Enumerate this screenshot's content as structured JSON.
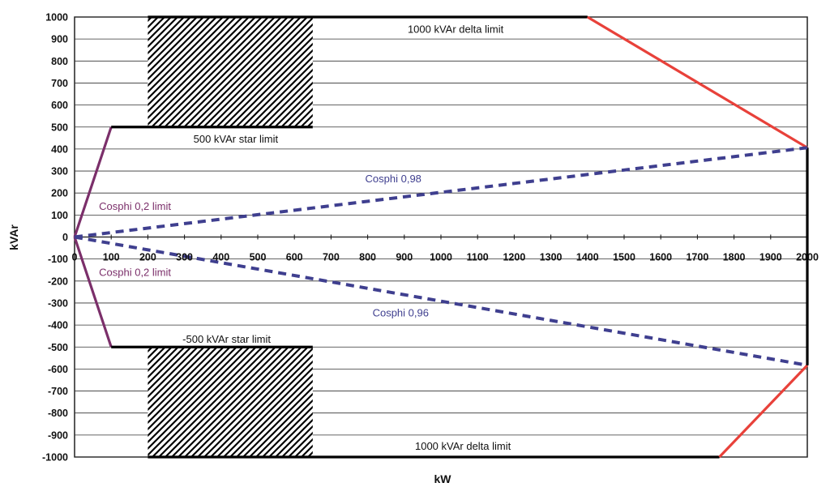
{
  "chart_data": {
    "type": "line",
    "xlabel": "kW",
    "ylabel": "kVAr",
    "xlim": [
      0,
      2000
    ],
    "ylim": [
      -1000,
      1000
    ],
    "x_ticks": [
      0,
      100,
      200,
      300,
      400,
      500,
      600,
      700,
      800,
      900,
      1000,
      1100,
      1200,
      1300,
      1400,
      1500,
      1600,
      1700,
      1800,
      1900,
      2000
    ],
    "y_ticks": [
      1000,
      900,
      800,
      700,
      600,
      500,
      400,
      300,
      200,
      100,
      0,
      -100,
      -200,
      -300,
      -400,
      -500,
      -600,
      -700,
      -800,
      -900,
      -1000
    ],
    "grid": "horizontal",
    "series": [
      {
        "id": "cosphi-02-upper",
        "color": "#7b2f6a",
        "dash": false,
        "x": [
          0,
          100
        ],
        "y": [
          0,
          500
        ]
      },
      {
        "id": "cosphi-02-lower",
        "color": "#7b2f6a",
        "dash": false,
        "x": [
          0,
          100
        ],
        "y": [
          0,
          -500
        ]
      },
      {
        "id": "star-limit-upper",
        "color": "#000000",
        "dash": false,
        "x": [
          100,
          650
        ],
        "y": [
          500,
          500
        ]
      },
      {
        "id": "star-limit-lower",
        "color": "#000000",
        "dash": false,
        "x": [
          100,
          650
        ],
        "y": [
          -500,
          -500
        ]
      },
      {
        "id": "delta-limit-upper",
        "color": "#000000",
        "dash": false,
        "x": [
          200,
          1400
        ],
        "y": [
          1000,
          1000
        ]
      },
      {
        "id": "delta-limit-lower",
        "color": "#000000",
        "dash": false,
        "x": [
          200,
          1760
        ],
        "y": [
          -1000,
          -1000
        ]
      },
      {
        "id": "red-boundary-upper",
        "color": "#e8413a",
        "dash": false,
        "x": [
          1400,
          2000
        ],
        "y": [
          1000,
          406
        ]
      },
      {
        "id": "red-boundary-lower",
        "color": "#e8413a",
        "dash": false,
        "x": [
          1760,
          2000
        ],
        "y": [
          -1000,
          -583
        ]
      },
      {
        "id": "right-boundary",
        "color": "#000000",
        "dash": false,
        "x": [
          2000,
          2000
        ],
        "y": [
          406,
          -583
        ]
      },
      {
        "id": "cosphi-098",
        "color": "#3f3f8f",
        "dash": true,
        "x": [
          0,
          2000
        ],
        "y": [
          0,
          406
        ]
      },
      {
        "id": "cosphi-096",
        "color": "#3f3f8f",
        "dash": true,
        "x": [
          0,
          2000
        ],
        "y": [
          0,
          -583
        ]
      }
    ],
    "hatched_regions": [
      {
        "x": [
          200,
          650
        ],
        "y": [
          500,
          1000
        ]
      },
      {
        "x": [
          200,
          650
        ],
        "y": [
          -1000,
          -500
        ]
      }
    ],
    "annotations": [
      {
        "text": "1000 kVAr delta limit",
        "x": 1040,
        "y": 945,
        "color": "#111111"
      },
      {
        "text": "500 kVAr star limit",
        "x": 440,
        "y": 445,
        "color": "#111111"
      },
      {
        "text": "Cosphi 0,98",
        "x": 870,
        "y": 265,
        "color": "#3f3f8f"
      },
      {
        "text": "Cosphi 0,2 limit",
        "x": 165,
        "y": 140,
        "color": "#7b2f6a"
      },
      {
        "text": "Cosphi 0,2 limit",
        "x": 165,
        "y": -160,
        "color": "#7b2f6a"
      },
      {
        "text": "Cosphi 0,96",
        "x": 890,
        "y": -345,
        "color": "#3f3f8f"
      },
      {
        "text": "-500 kVAr star limit",
        "x": 415,
        "y": -465,
        "color": "#111111"
      },
      {
        "text": "1000 kVAr delta limit",
        "x": 1060,
        "y": -950,
        "color": "#111111"
      }
    ]
  }
}
